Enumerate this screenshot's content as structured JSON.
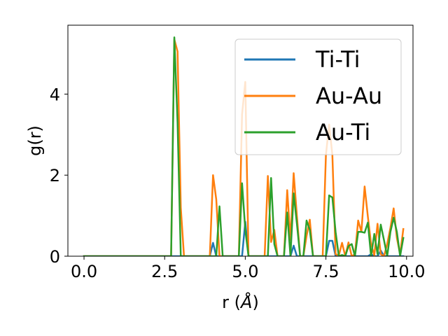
{
  "chart_data": {
    "type": "line",
    "xlabel_prefix": "r (",
    "xlabel_unit": "Å",
    "xlabel_suffix": ")",
    "ylabel": "g(r)",
    "xlim": [
      -0.5,
      10.2
    ],
    "ylim": [
      0,
      5.7
    ],
    "xticks": [
      0.0,
      2.5,
      5.0,
      7.5,
      10.0
    ],
    "xtick_labels": [
      "0.0",
      "2.5",
      "5.0",
      "7.5",
      "10.0"
    ],
    "yticks": [
      0,
      2,
      4
    ],
    "ytick_labels": [
      "0",
      "2",
      "4"
    ],
    "grid": false,
    "legend_position": "top-right",
    "series": [
      {
        "name": "Ti-Ti",
        "color": "#1f77b4",
        "points": [
          [
            0,
            0
          ],
          [
            3.9,
            0
          ],
          [
            4.0,
            0.33
          ],
          [
            4.1,
            0
          ],
          [
            4.9,
            0
          ],
          [
            5.0,
            0.85
          ],
          [
            5.1,
            0
          ],
          [
            6.4,
            0
          ],
          [
            6.5,
            0.26
          ],
          [
            6.6,
            0
          ],
          [
            7.5,
            0
          ],
          [
            7.6,
            0.38
          ],
          [
            7.7,
            0.38
          ],
          [
            7.8,
            0
          ],
          [
            8.8,
            0
          ],
          [
            8.9,
            0.05
          ],
          [
            9.0,
            0
          ],
          [
            9.1,
            0
          ],
          [
            9.2,
            0.14
          ],
          [
            9.3,
            0
          ],
          [
            9.9,
            0
          ]
        ]
      },
      {
        "name": "Au-Au",
        "color": "#ff7f0e",
        "points": [
          [
            0,
            0
          ],
          [
            2.7,
            0
          ],
          [
            2.8,
            5.35
          ],
          [
            2.9,
            5.05
          ],
          [
            3.0,
            1.2
          ],
          [
            3.1,
            0
          ],
          [
            3.9,
            0
          ],
          [
            4.0,
            2.0
          ],
          [
            4.1,
            1.4
          ],
          [
            4.2,
            0
          ],
          [
            4.8,
            0
          ],
          [
            4.9,
            3.5
          ],
          [
            5.0,
            4.3
          ],
          [
            5.1,
            0
          ],
          [
            5.6,
            0
          ],
          [
            5.7,
            1.98
          ],
          [
            5.8,
            0.35
          ],
          [
            5.9,
            0.65
          ],
          [
            6.0,
            0
          ],
          [
            6.2,
            0
          ],
          [
            6.3,
            1.63
          ],
          [
            6.4,
            0.4
          ],
          [
            6.5,
            2.05
          ],
          [
            6.6,
            1.0
          ],
          [
            6.7,
            0
          ],
          [
            6.8,
            0
          ],
          [
            6.9,
            0.5
          ],
          [
            7.0,
            0.9
          ],
          [
            7.1,
            0
          ],
          [
            7.4,
            0
          ],
          [
            7.5,
            2.5
          ],
          [
            7.6,
            3.25
          ],
          [
            7.7,
            2.5
          ],
          [
            7.8,
            0.05
          ],
          [
            7.9,
            0.02
          ],
          [
            8.0,
            0.33
          ],
          [
            8.1,
            0
          ],
          [
            8.2,
            0.34
          ],
          [
            8.3,
            0
          ],
          [
            8.4,
            0.05
          ],
          [
            8.5,
            0.88
          ],
          [
            8.6,
            0.6
          ],
          [
            8.7,
            1.72
          ],
          [
            8.8,
            0.98
          ],
          [
            8.9,
            0.3
          ],
          [
            9.0,
            0.02
          ],
          [
            9.1,
            0.8
          ],
          [
            9.2,
            0.05
          ],
          [
            9.3,
            0
          ],
          [
            9.4,
            0.3
          ],
          [
            9.5,
            0.7
          ],
          [
            9.6,
            1.18
          ],
          [
            9.7,
            0.45
          ],
          [
            9.8,
            0.05
          ],
          [
            9.9,
            0.67
          ]
        ]
      },
      {
        "name": "Au-Ti",
        "color": "#2ca02c",
        "points": [
          [
            0,
            0
          ],
          [
            2.7,
            0
          ],
          [
            2.8,
            5.4
          ],
          [
            2.9,
            3.3
          ],
          [
            3.0,
            0
          ],
          [
            4.1,
            0
          ],
          [
            4.2,
            1.23
          ],
          [
            4.3,
            0
          ],
          [
            4.8,
            0
          ],
          [
            4.9,
            1.8
          ],
          [
            5.0,
            0.65
          ],
          [
            5.1,
            0
          ],
          [
            5.7,
            0
          ],
          [
            5.8,
            1.93
          ],
          [
            5.9,
            0.3
          ],
          [
            6.0,
            0
          ],
          [
            6.2,
            0
          ],
          [
            6.3,
            1.08
          ],
          [
            6.4,
            0
          ],
          [
            6.5,
            1.55
          ],
          [
            6.6,
            0.8
          ],
          [
            6.7,
            0
          ],
          [
            6.8,
            0
          ],
          [
            6.9,
            0.88
          ],
          [
            7.0,
            0.65
          ],
          [
            7.1,
            0
          ],
          [
            7.5,
            0
          ],
          [
            7.6,
            1.5
          ],
          [
            7.7,
            1.45
          ],
          [
            7.8,
            0.6
          ],
          [
            7.9,
            0
          ],
          [
            8.0,
            0.03
          ],
          [
            8.1,
            0
          ],
          [
            8.2,
            0.25
          ],
          [
            8.3,
            0.3
          ],
          [
            8.4,
            0
          ],
          [
            8.5,
            0.6
          ],
          [
            8.6,
            0.6
          ],
          [
            8.7,
            0.58
          ],
          [
            8.8,
            0.83
          ],
          [
            8.9,
            0
          ],
          [
            9.0,
            0.55
          ],
          [
            9.1,
            0.05
          ],
          [
            9.2,
            0.78
          ],
          [
            9.3,
            0.4
          ],
          [
            9.4,
            0
          ],
          [
            9.5,
            0.6
          ],
          [
            9.6,
            0.95
          ],
          [
            9.7,
            0.6
          ],
          [
            9.8,
            0
          ],
          [
            9.9,
            0.45
          ]
        ]
      }
    ]
  }
}
